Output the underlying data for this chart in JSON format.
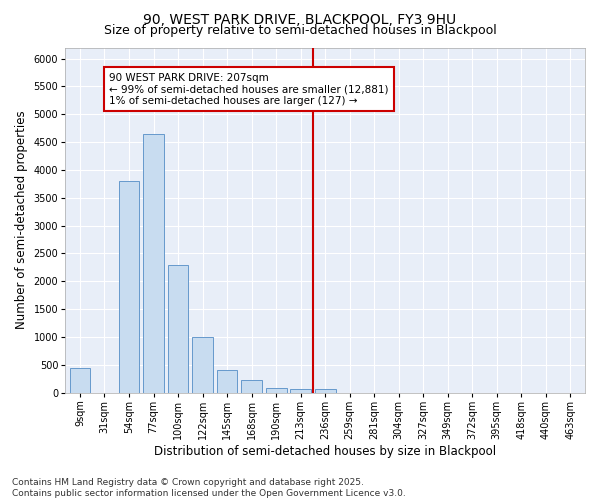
{
  "title_line1": "90, WEST PARK DRIVE, BLACKPOOL, FY3 9HU",
  "title_line2": "Size of property relative to semi-detached houses in Blackpool",
  "xlabel": "Distribution of semi-detached houses by size in Blackpool",
  "ylabel": "Number of semi-detached properties",
  "categories": [
    "9sqm",
    "31sqm",
    "54sqm",
    "77sqm",
    "100sqm",
    "122sqm",
    "145sqm",
    "168sqm",
    "190sqm",
    "213sqm",
    "236sqm",
    "259sqm",
    "281sqm",
    "304sqm",
    "327sqm",
    "349sqm",
    "372sqm",
    "395sqm",
    "418sqm",
    "440sqm",
    "463sqm"
  ],
  "values": [
    450,
    0,
    3800,
    4650,
    2300,
    1000,
    400,
    230,
    80,
    70,
    60,
    0,
    0,
    0,
    0,
    0,
    0,
    0,
    0,
    0,
    0
  ],
  "bar_color": "#c8dcf0",
  "bar_edge_color": "#6699cc",
  "vline_x_index": 9.5,
  "vline_color": "#cc0000",
  "annotation_text": "90 WEST PARK DRIVE: 207sqm\n← 99% of semi-detached houses are smaller (12,881)\n1% of semi-detached houses are larger (127) →",
  "annotation_box_facecolor": "#ffffff",
  "annotation_box_edgecolor": "#cc0000",
  "ylim": [
    0,
    6200
  ],
  "yticks": [
    0,
    500,
    1000,
    1500,
    2000,
    2500,
    3000,
    3500,
    4000,
    4500,
    5000,
    5500,
    6000
  ],
  "plot_bg_color": "#e8eef8",
  "fig_bg_color": "#ffffff",
  "grid_color": "#ffffff",
  "footer_text": "Contains HM Land Registry data © Crown copyright and database right 2025.\nContains public sector information licensed under the Open Government Licence v3.0.",
  "title_fontsize": 10,
  "subtitle_fontsize": 9,
  "axis_label_fontsize": 8.5,
  "tick_fontsize": 7,
  "footer_fontsize": 6.5,
  "annot_fontsize": 7.5
}
